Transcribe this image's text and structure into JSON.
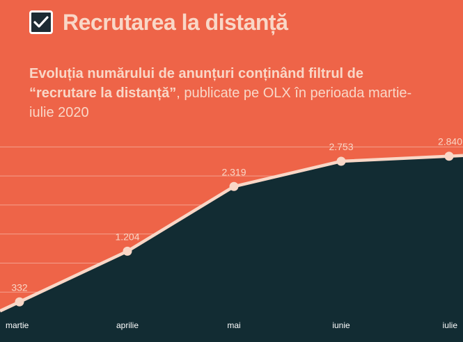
{
  "header": {
    "title": "Recrutarea la distanță",
    "icon": "checkbox-checked-icon"
  },
  "subtitle": {
    "bold_part1": "Evoluția numărului de anunțuri conținând filtrul de ",
    "bold_part2": "“recrutare la distanță”",
    "regular_part": ", publicate pe OLX în perioada martie-iulie 2020"
  },
  "colors": {
    "background": "#ee6448",
    "area_fill": "#122c33",
    "line": "#f9d7c7",
    "text_light": "#f9d7c7",
    "gridline": "#f4a08d"
  },
  "chart_data": {
    "type": "area",
    "categories": [
      "martie",
      "aprilie",
      "mai",
      "iunie",
      "iulie"
    ],
    "values": [
      332,
      1204,
      2319,
      2753,
      2840
    ],
    "value_labels": [
      "332",
      "1.204",
      "2.319",
      "2.753",
      "2.840"
    ],
    "title": "Recrutarea la distanță",
    "xlabel": "",
    "ylabel": "",
    "ylim": [
      0,
      3100
    ],
    "grid": true,
    "legend": "none"
  }
}
